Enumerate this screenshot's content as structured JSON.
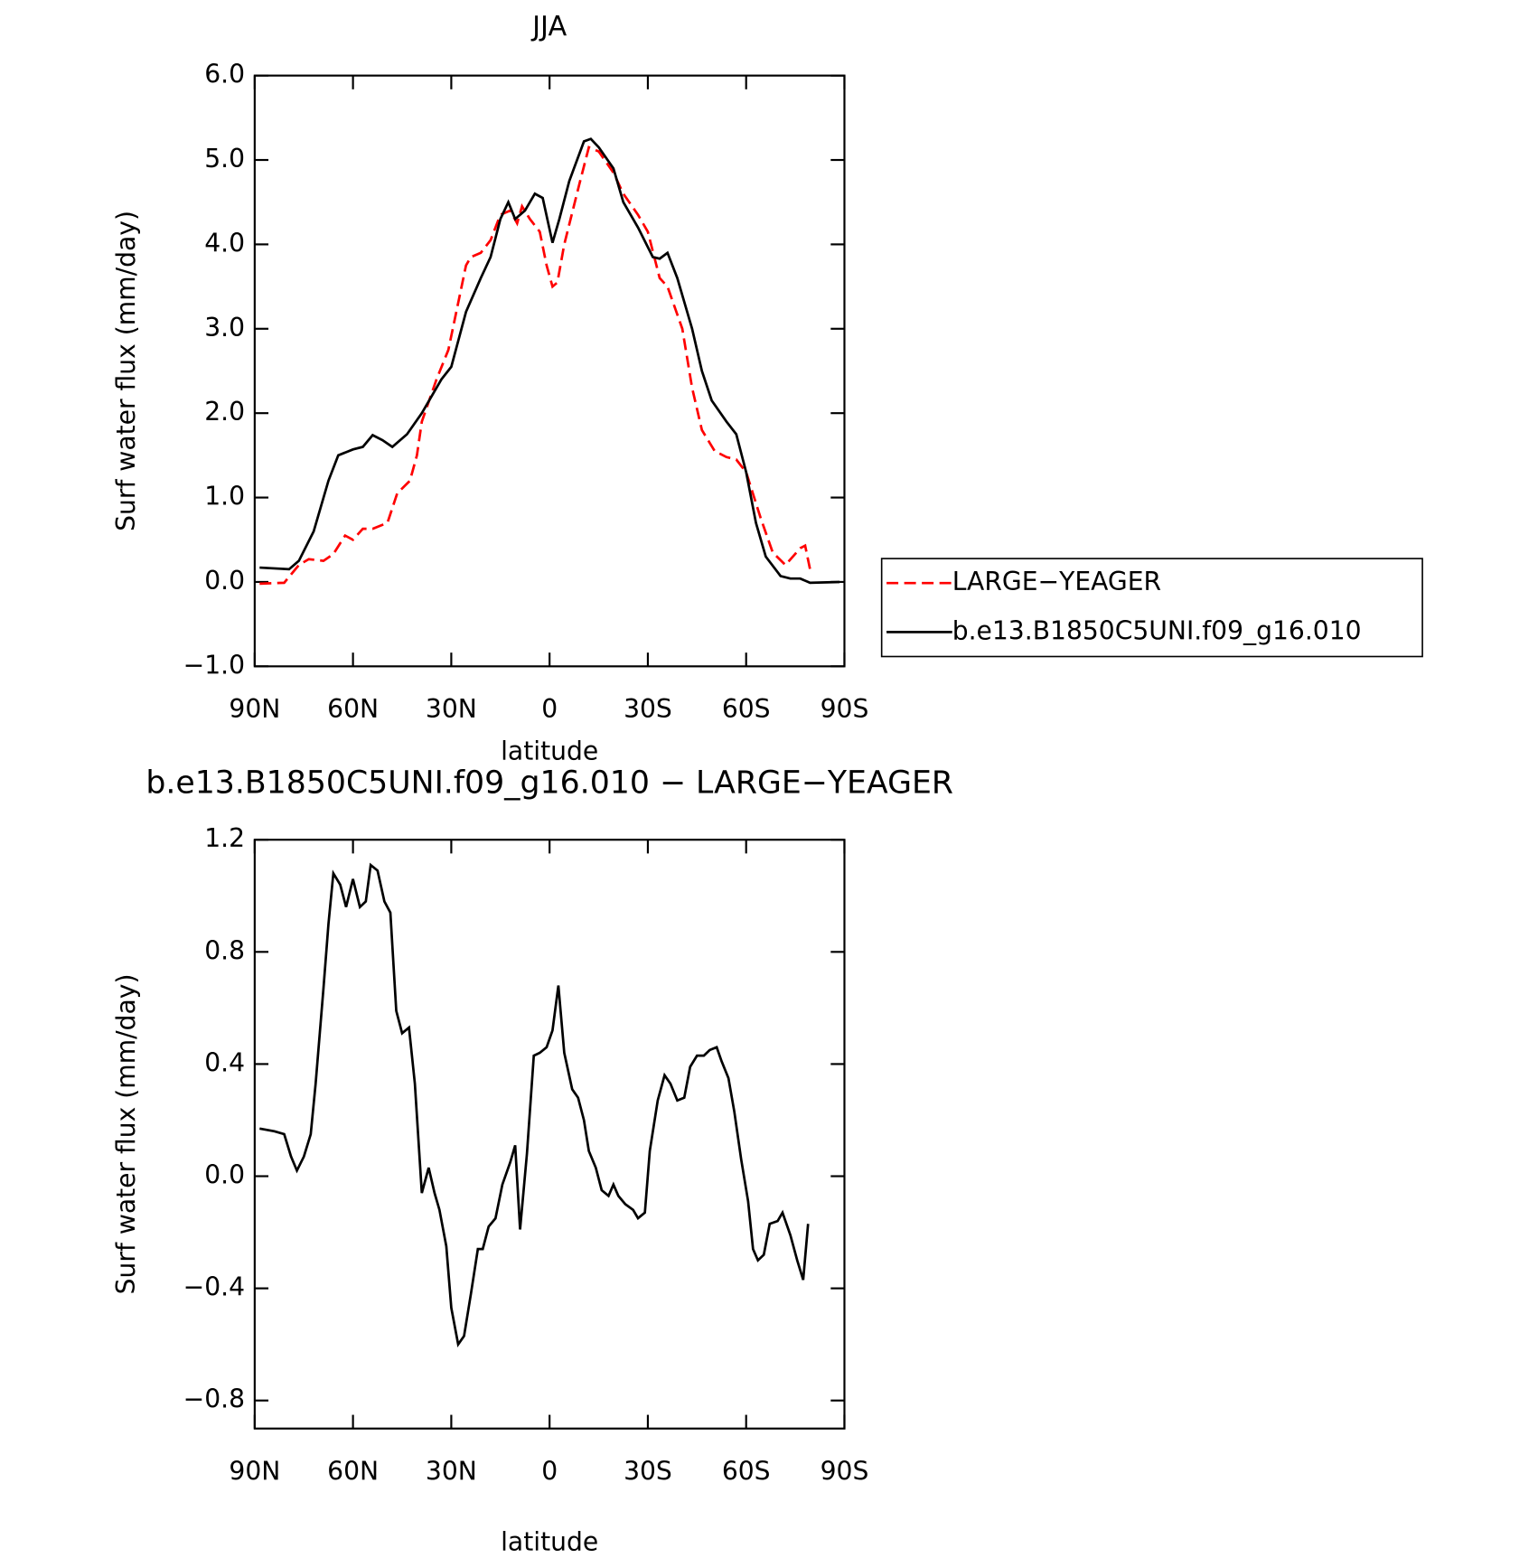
{
  "chart_data": [
    {
      "type": "line",
      "title": "JJA",
      "xlabel": "latitude",
      "ylabel": "Surf water flux (mm/day)",
      "xlim": [
        90,
        -90
      ],
      "xticks": [
        {
          "value": 90,
          "label": "90N"
        },
        {
          "value": 60,
          "label": "60N"
        },
        {
          "value": 30,
          "label": "30N"
        },
        0,
        {
          "value": -30,
          "label": "30S"
        },
        {
          "value": -60,
          "label": "60S"
        },
        {
          "value": -90,
          "label": "90S"
        }
      ],
      "ylim": [
        -1,
        6
      ],
      "yticks": [
        {
          "value": 6,
          "label": "6.0"
        },
        {
          "value": 5,
          "label": "5.0"
        },
        {
          "value": 4,
          "label": "4.0"
        },
        {
          "value": 3,
          "label": "3.0"
        },
        {
          "value": 2,
          "label": "2.0"
        },
        {
          "value": 1,
          "label": "1.0"
        },
        {
          "value": 0,
          "label": "0.0"
        },
        {
          "value": -1,
          "label": "−1.0"
        }
      ],
      "legend": "right",
      "series": [
        {
          "name": "LARGE−YEAGER",
          "color": "#ff0000",
          "dash": true,
          "x": [
            88.5,
            81,
            76.5,
            73.5,
            69,
            66,
            62.4,
            60,
            57,
            54,
            49.5,
            46.5,
            42.6,
            40.5,
            39,
            34.5,
            30.9,
            25.5,
            24,
            21,
            18,
            15,
            12,
            9.9,
            8.4,
            6,
            3,
            0.9,
            -0.9,
            -2.4,
            -4.5,
            -9,
            -12,
            -15,
            -19.5,
            -22.5,
            -27,
            -30,
            -33.6,
            -36,
            -40.5,
            -43.5,
            -46.5,
            -50.4,
            -54,
            -57,
            -60,
            -64.5,
            -68.1,
            -72,
            -76.5,
            -78,
            -79.5
          ],
          "values": [
            -0.02,
            -0.01,
            0.2,
            0.27,
            0.25,
            0.33,
            0.55,
            0.5,
            0.63,
            0.63,
            0.7,
            1.05,
            1.2,
            1.5,
            1.9,
            2.4,
            2.75,
            3.75,
            3.85,
            3.9,
            4.05,
            4.35,
            4.4,
            4.25,
            4.45,
            4.3,
            4.15,
            3.75,
            3.5,
            3.55,
            4.0,
            4.7,
            5.15,
            5.1,
            4.85,
            4.6,
            4.35,
            4.15,
            3.6,
            3.5,
            3.0,
            2.3,
            1.8,
            1.55,
            1.48,
            1.45,
            1.3,
            0.75,
            0.35,
            0.2,
            0.4,
            0.43,
            0.15
          ]
        },
        {
          "name": "b.e13.B1850C5UNI.f09_g16.010",
          "color": "#000000",
          "dash": false,
          "x": [
            88.5,
            79.5,
            76.5,
            72,
            67.5,
            64.5,
            60,
            57,
            54,
            51,
            48,
            43.5,
            39,
            33,
            30,
            25.5,
            21,
            18,
            15,
            12.6,
            10.5,
            7.5,
            4.5,
            2.1,
            -0.9,
            -3,
            -6,
            -10.5,
            -12.6,
            -15,
            -19.5,
            -22.5,
            -27,
            -31.5,
            -33.6,
            -36,
            -39,
            -43.5,
            -46.5,
            -49.5,
            -54,
            -57,
            -60,
            -63,
            -66,
            -70.5,
            -73.5,
            -76.5,
            -79.5,
            -88.5
          ],
          "values": [
            0.17,
            0.15,
            0.25,
            0.6,
            1.2,
            1.5,
            1.57,
            1.6,
            1.74,
            1.68,
            1.6,
            1.75,
            2.0,
            2.4,
            2.55,
            3.2,
            3.6,
            3.85,
            4.3,
            4.5,
            4.3,
            4.4,
            4.6,
            4.55,
            4.02,
            4.3,
            4.75,
            5.22,
            5.25,
            5.15,
            4.9,
            4.5,
            4.2,
            3.85,
            3.83,
            3.9,
            3.6,
            3.0,
            2.5,
            2.15,
            1.9,
            1.75,
            1.3,
            0.7,
            0.3,
            0.07,
            0.04,
            0.04,
            -0.01,
            0.0
          ]
        }
      ]
    },
    {
      "type": "line",
      "title": "b.e13.B1850C5UNI.f09_g16.010 − LARGE−YEAGER",
      "xlabel": "latitude",
      "ylabel": "Surf water flux (mm/day)",
      "xlim": [
        90,
        -90
      ],
      "xticks": [
        {
          "value": 90,
          "label": "90N"
        },
        {
          "value": 60,
          "label": "60N"
        },
        {
          "value": 30,
          "label": "30N"
        },
        0,
        {
          "value": -30,
          "label": "30S"
        },
        {
          "value": -60,
          "label": "60S"
        },
        {
          "value": -90,
          "label": "90S"
        }
      ],
      "ylim": [
        -0.9,
        1.2
      ],
      "yticks": [
        1.2,
        0.8,
        0.4,
        {
          "value": 0,
          "label": "0.0"
        },
        {
          "value": -0.4,
          "label": "−0.4"
        },
        {
          "value": -0.8,
          "label": "−0.8"
        }
      ],
      "series": [
        {
          "color": "#000000",
          "dash": false,
          "x": [
            88.5,
            84,
            81,
            78.9,
            77.1,
            75,
            72.9,
            71.4,
            69,
            67.5,
            66,
            63.9,
            62.1,
            60,
            57.9,
            56.1,
            54.6,
            52.5,
            50.4,
            48.6,
            46.8,
            45,
            42.9,
            41.1,
            39,
            36.9,
            35.1,
            33.6,
            31.5,
            30,
            27.9,
            26.1,
            24,
            21.9,
            20.4,
            18.6,
            16.5,
            14.4,
            12,
            10.5,
            9,
            6.9,
            4.8,
            3,
            0.9,
            -0.9,
            -2.7,
            -4.5,
            -6.9,
            -8.7,
            -10.5,
            -12,
            -14.1,
            -15.9,
            -18,
            -19.5,
            -21,
            -23.1,
            -25.5,
            -27,
            -29.1,
            -30.6,
            -33,
            -35.1,
            -36.9,
            -39,
            -41.1,
            -42.9,
            -45,
            -47.1,
            -48.9,
            -51,
            -52.5,
            -54.6,
            -56.4,
            -58.5,
            -60.6,
            -62.1,
            -63.6,
            -65.4,
            -67.2,
            -69.6,
            -71.1,
            -73.5,
            -75.6,
            -77.4,
            -78.9
          ],
          "values": [
            0.17,
            0.16,
            0.15,
            0.07,
            0.02,
            0.07,
            0.15,
            0.33,
            0.67,
            0.9,
            1.08,
            1.04,
            0.96,
            1.06,
            0.96,
            0.98,
            1.11,
            1.09,
            0.98,
            0.94,
            0.59,
            0.51,
            0.53,
            0.33,
            -0.06,
            0.03,
            -0.06,
            -0.12,
            -0.25,
            -0.47,
            -0.6,
            -0.57,
            -0.42,
            -0.26,
            -0.26,
            -0.18,
            -0.15,
            -0.03,
            0.05,
            0.11,
            -0.19,
            0.08,
            0.43,
            0.44,
            0.46,
            0.52,
            0.68,
            0.44,
            0.31,
            0.28,
            0.2,
            0.09,
            0.03,
            -0.05,
            -0.07,
            -0.03,
            -0.07,
            -0.1,
            -0.12,
            -0.15,
            -0.13,
            0.09,
            0.27,
            0.36,
            0.33,
            0.27,
            0.28,
            0.39,
            0.43,
            0.43,
            0.45,
            0.46,
            0.41,
            0.35,
            0.23,
            0.06,
            -0.09,
            -0.26,
            -0.3,
            -0.28,
            -0.17,
            -0.16,
            -0.13,
            -0.21,
            -0.3,
            -0.37,
            -0.17
          ]
        }
      ]
    }
  ]
}
